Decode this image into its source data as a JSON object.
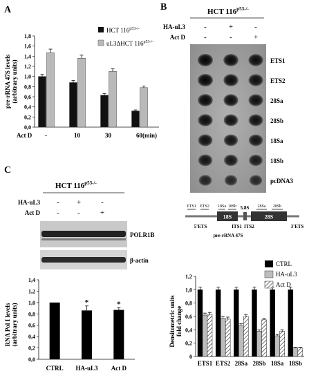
{
  "panels": {
    "a": "A",
    "b": "B",
    "c": "C"
  },
  "colors": {
    "cell_line": "#111111",
    "ko_line": "#b9b9b9",
    "ctrl": "#000000",
    "ha": "#bdbdbd",
    "actd": "#ffffff",
    "blot_bg": "#a6a6a6",
    "dot": "#141414"
  },
  "blot_b": {
    "header": "HCT 116",
    "header_sup": "p53-/-",
    "row_labels": [
      "HA-uL3",
      "Act D"
    ],
    "signs": [
      [
        "-",
        "+",
        "-"
      ],
      [
        "-",
        "-",
        "+"
      ]
    ],
    "probes": [
      "ETS1",
      "ETS2",
      "28Sa",
      "28Sb",
      "18Sa",
      "18Sb",
      "pcDNA3"
    ],
    "dot_intensity": [
      [
        1.0,
        0.95,
        0.9
      ],
      [
        1.0,
        0.92,
        0.88
      ],
      [
        0.95,
        0.9,
        0.88
      ],
      [
        0.9,
        0.85,
        0.85
      ],
      [
        0.85,
        0.8,
        0.8
      ],
      [
        0.8,
        0.75,
        0.72
      ],
      [
        0.6,
        0.55,
        0.55
      ]
    ]
  },
  "schematic": {
    "ets_left": "5'ETS",
    "ets_right": "3'ETS",
    "its1": "ITS1",
    "its2": "ITS2",
    "s18": "18S",
    "s58": "5.8S",
    "s28": "28S",
    "caption": "pre-rRNA 47S",
    "probe_labels": [
      "ETS1",
      "ETS2",
      "18Sa",
      "18Sb",
      "28Sa",
      "28Sb"
    ]
  },
  "blot_c": {
    "header": "HCT 116",
    "header_sup": "p53-/-",
    "row_labels": [
      "HA-uL3",
      "Act D"
    ],
    "signs": [
      [
        "-",
        "+",
        "-"
      ],
      [
        "-",
        "-",
        "+"
      ]
    ],
    "bands": [
      "POLR1B",
      "β-actin"
    ]
  },
  "chart_data": [
    {
      "type": "bar",
      "panel": "A",
      "categories": [
        "-",
        "10",
        "30",
        "60"
      ],
      "x_prefix": "Act D",
      "x_unit": "(min)",
      "ylabel": "pre-rRNA 47S levels",
      "ylabel2": "(arbitrary units)",
      "ylim": [
        0,
        1.8
      ],
      "ytick_step": 0.2,
      "yticks": [
        "0,0",
        "0,2",
        "0,4",
        "0,6",
        "0,8",
        "1,0",
        "1,2",
        "1,4",
        "1,6",
        "1,8"
      ],
      "legend_placement": "top-right",
      "series": [
        {
          "name": "HCT 116",
          "sup": "p53-/-",
          "values": [
            1.0,
            0.88,
            0.63,
            0.32
          ],
          "errors": [
            0.04,
            0.04,
            0.03,
            0.02
          ]
        },
        {
          "name": "uL3ΔHCT 116",
          "sup": "p53-/-",
          "values": [
            1.47,
            1.36,
            1.1,
            0.78
          ],
          "errors": [
            0.07,
            0.06,
            0.05,
            0.03
          ]
        }
      ]
    },
    {
      "type": "bar",
      "panel": "C",
      "categories": [
        "CTRL",
        "HA-uL3",
        "Act D"
      ],
      "ylabel": "RNA Pol I levels",
      "ylabel2": "(arbitrary units)",
      "ylim": [
        0,
        1.4
      ],
      "ytick_step": 0.2,
      "yticks": [
        "0,0",
        "0,2",
        "0,4",
        "0,6",
        "0,8",
        "1,0",
        "1,2",
        "1,4"
      ],
      "values": [
        1.0,
        0.86,
        0.87
      ],
      "errors": [
        0.0,
        0.08,
        0.04
      ],
      "annotations": [
        "",
        "*",
        "*"
      ]
    },
    {
      "type": "bar",
      "panel": "C-right",
      "categories": [
        "ETS1",
        "ETS2",
        "28Sa",
        "28Sb",
        "18Sa",
        "18Sb"
      ],
      "ylabel": "Densitometric units",
      "ylabel2": "fold change",
      "ylim": [
        0,
        1.2
      ],
      "ytick_step": 0.2,
      "yticks": [
        "0",
        "0,2",
        "0,4",
        "0,6",
        "0,8",
        "1,0",
        "1,2"
      ],
      "legend_placement": "top-right",
      "series": [
        {
          "name": "CTRL",
          "values": [
            1.0,
            1.0,
            1.0,
            1.0,
            1.0,
            1.0
          ],
          "errors": [
            0.04,
            0.04,
            0.04,
            0.04,
            0.04,
            0.04
          ]
        },
        {
          "name": "HA-uL3",
          "values": [
            0.62,
            0.57,
            0.47,
            0.38,
            0.31,
            0.13
          ],
          "errors": [
            0.03,
            0.03,
            0.02,
            0.02,
            0.02,
            0.01
          ]
        },
        {
          "name": "Act D",
          "values": [
            0.63,
            0.56,
            0.6,
            0.55,
            0.38,
            0.13
          ],
          "errors": [
            0.03,
            0.03,
            0.03,
            0.02,
            0.02,
            0.01
          ]
        }
      ]
    }
  ]
}
